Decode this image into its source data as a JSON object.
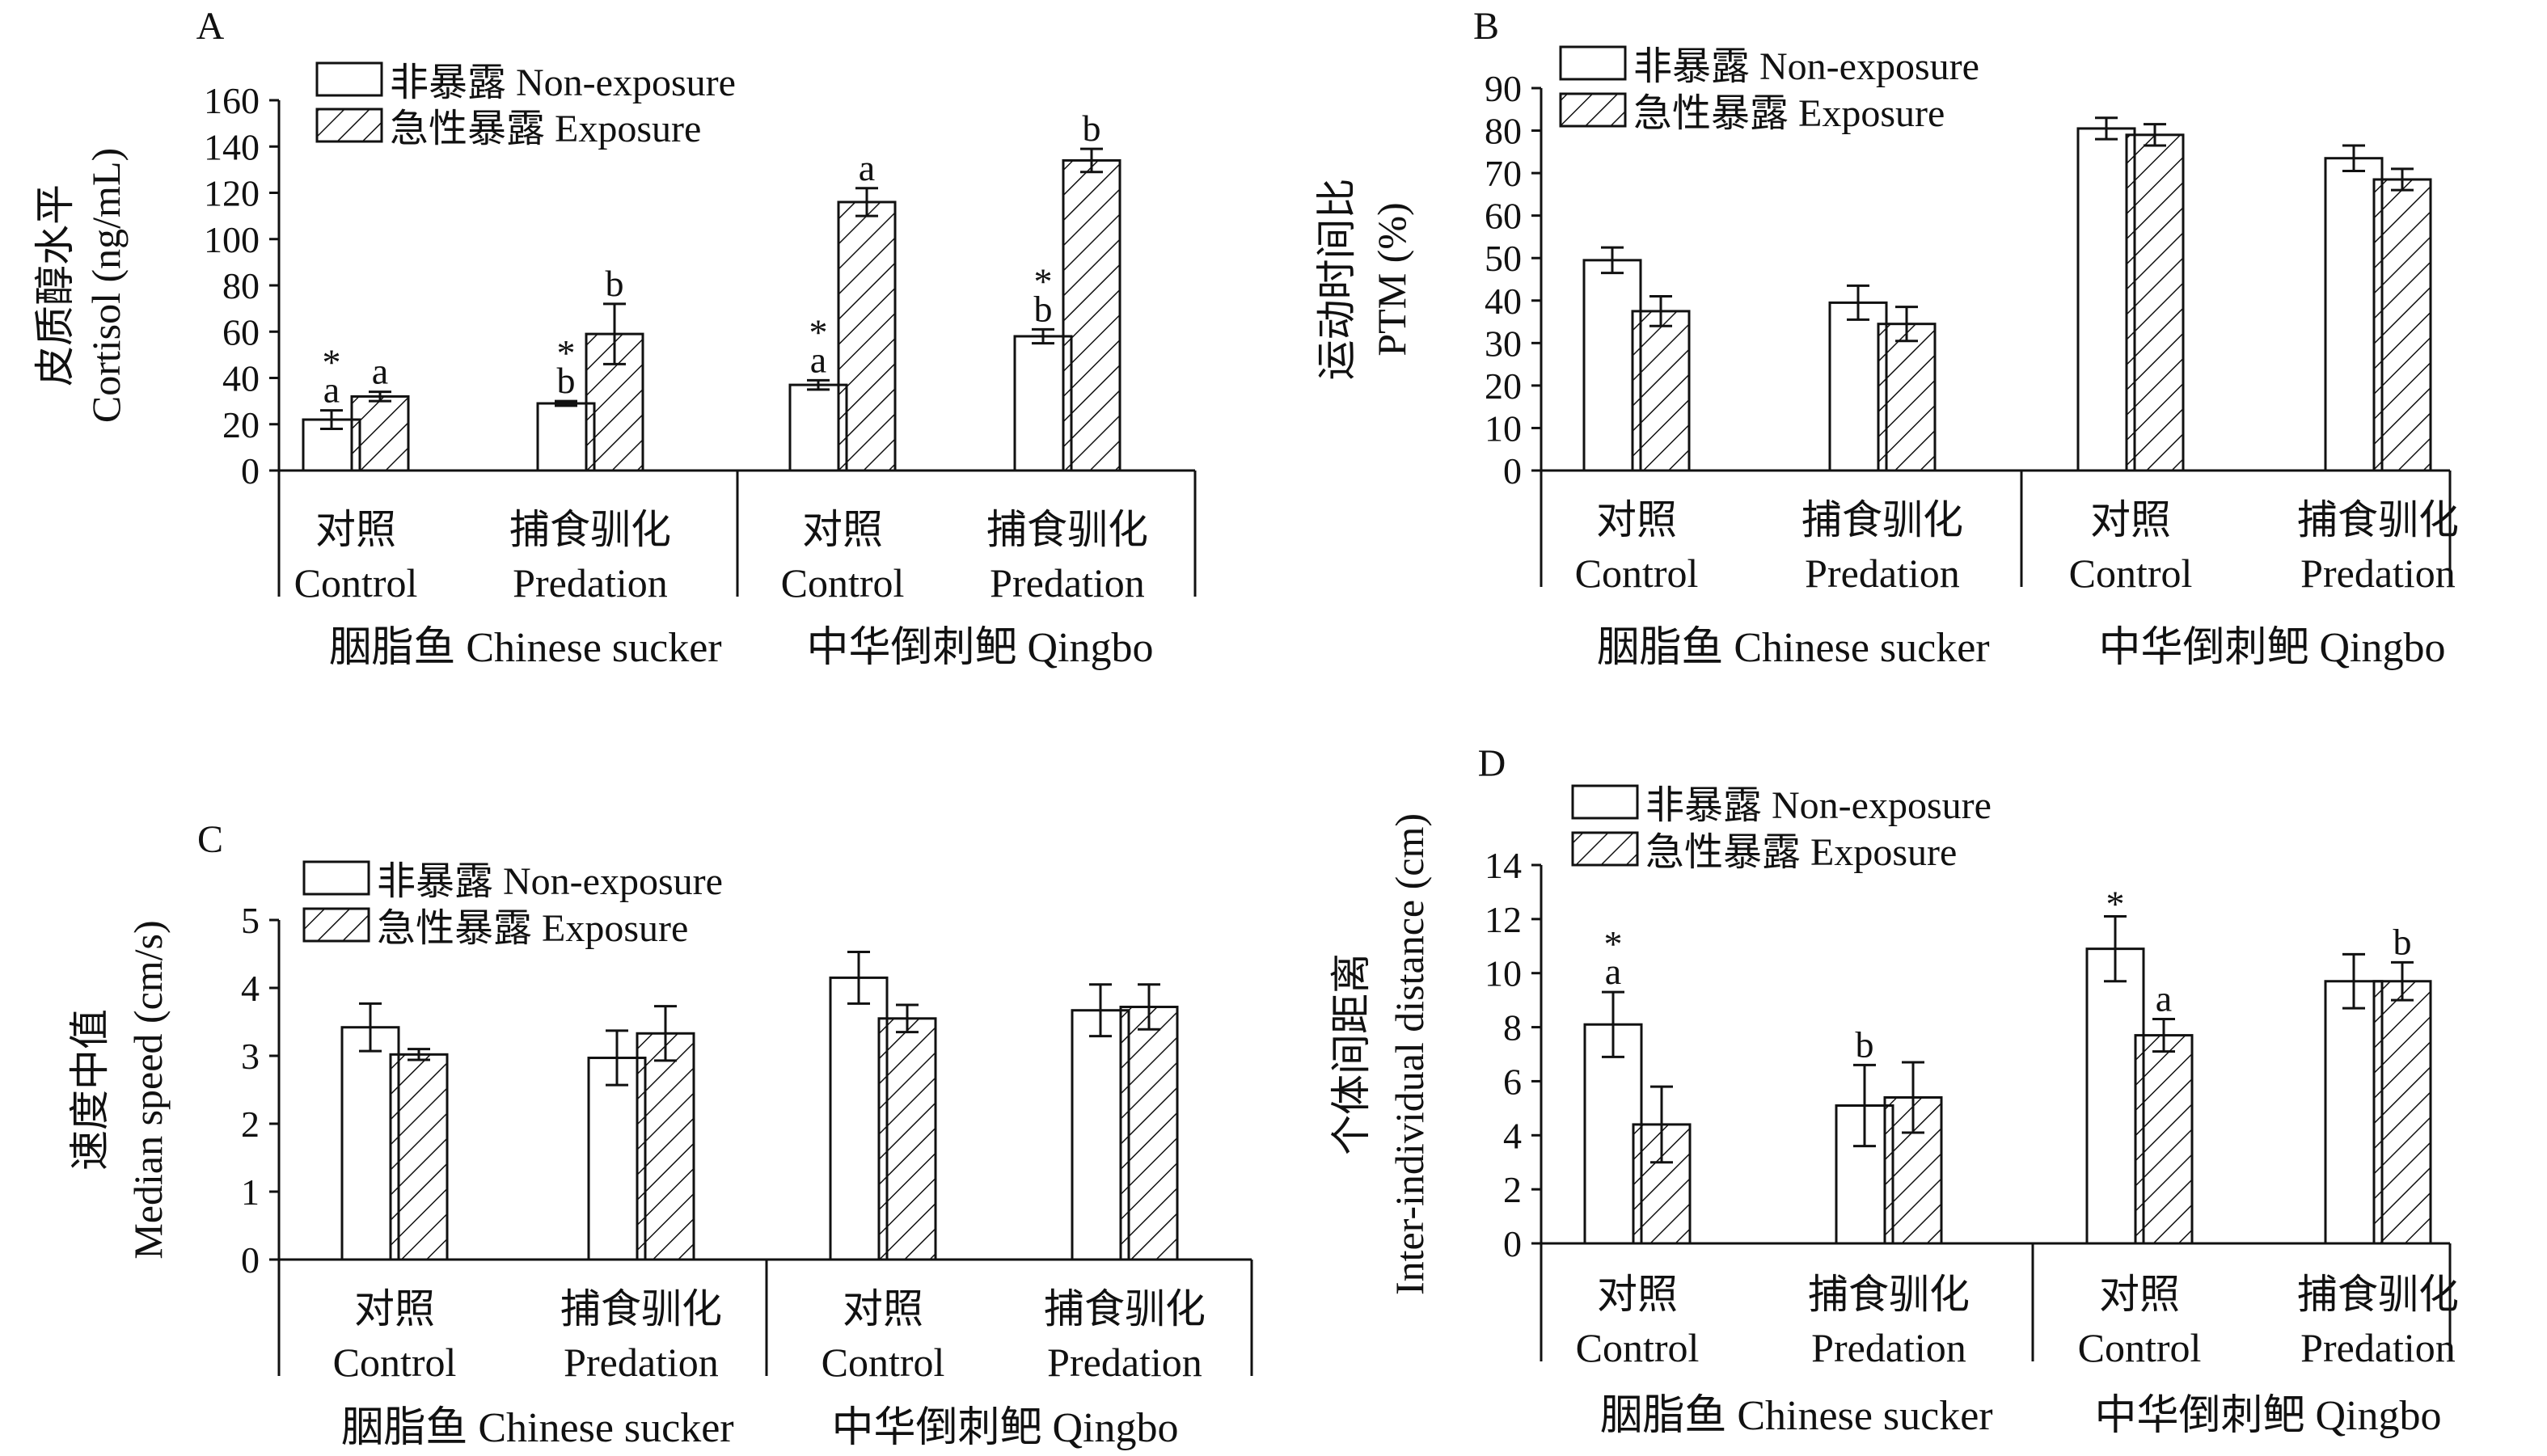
{
  "legend": {
    "non_exposure": "非暴露 Non-exposure",
    "exposure": "急性暴露 Exposure"
  },
  "groups": {
    "control_cn": "对照",
    "control_en": "Control",
    "predation_cn": "捕食驯化",
    "predation_en": "Predation",
    "species1": "胭脂鱼 Chinese sucker",
    "species2": "中华倒刺鲃 Qingbo"
  },
  "chart_data": [
    {
      "type": "bar",
      "panel": "A",
      "ylabel_cn": "皮质醇水平",
      "ylabel_en": "Cortisol (ng/mL)",
      "ylim": [
        0,
        160
      ],
      "yticks": [
        0,
        20,
        40,
        60,
        80,
        100,
        120,
        140,
        160
      ],
      "categories": [
        "胭脂鱼 对照 Control",
        "胭脂鱼 捕食驯化 Predation",
        "中华倒刺鲃 对照 Control",
        "中华倒刺鲃 捕食驯化 Predation"
      ],
      "series": [
        {
          "name": "非暴露 Non-exposure",
          "values": [
            22,
            29,
            37,
            58
          ],
          "errors": [
            4,
            1,
            2,
            3
          ],
          "labels": [
            "*\na",
            "*\nb",
            "*\na",
            "*\nb"
          ]
        },
        {
          "name": "急性暴露 Exposure",
          "values": [
            32,
            59,
            116,
            134
          ],
          "errors": [
            2,
            13,
            6,
            5
          ],
          "labels": [
            "a",
            "b",
            "a",
            "b"
          ]
        }
      ]
    },
    {
      "type": "bar",
      "panel": "B",
      "ylabel_cn": "运动时间比",
      "ylabel_en": "PTM (%)",
      "ylim": [
        0,
        90
      ],
      "yticks": [
        0,
        10,
        20,
        30,
        40,
        50,
        60,
        70,
        80,
        90
      ],
      "categories": [
        "胭脂鱼 对照 Control",
        "胭脂鱼 捕食驯化 Predation",
        "中华倒刺鲃 对照 Control",
        "中华倒刺鲃 捕食驯化 Predation"
      ],
      "series": [
        {
          "name": "非暴露 Non-exposure",
          "values": [
            49.5,
            39.5,
            80.5,
            73.5
          ],
          "errors": [
            3,
            4,
            2.5,
            3
          ],
          "labels": [
            "",
            "",
            "",
            ""
          ]
        },
        {
          "name": "急性暴露 Exposure",
          "values": [
            37.5,
            34.5,
            79,
            68.5
          ],
          "errors": [
            3.5,
            4,
            2.5,
            2.5
          ],
          "labels": [
            "",
            "",
            "",
            ""
          ]
        }
      ]
    },
    {
      "type": "bar",
      "panel": "C",
      "ylabel_cn": "速度中值",
      "ylabel_en": "Median speed (cm/s)",
      "ylim": [
        0,
        5
      ],
      "yticks": [
        0,
        1,
        2,
        3,
        4,
        5
      ],
      "categories": [
        "胭脂鱼 对照 Control",
        "胭脂鱼 捕食驯化 Predation",
        "中华倒刺鲃 对照 Control",
        "中华倒刺鲃 捕食驯化 Predation"
      ],
      "series": [
        {
          "name": "非暴露 Non-exposure",
          "values": [
            3.42,
            2.97,
            4.15,
            3.67
          ],
          "errors": [
            0.35,
            0.4,
            0.38,
            0.38
          ],
          "labels": [
            "",
            "",
            "",
            ""
          ]
        },
        {
          "name": "急性暴露 Exposure",
          "values": [
            3.02,
            3.33,
            3.55,
            3.72
          ],
          "errors": [
            0.08,
            0.4,
            0.2,
            0.33
          ],
          "labels": [
            "",
            "",
            "",
            ""
          ]
        }
      ]
    },
    {
      "type": "bar",
      "panel": "D",
      "ylabel_cn": "个体间距离",
      "ylabel_en": "Inter-individual distance (cm)",
      "ylim": [
        0,
        14
      ],
      "yticks": [
        0,
        2,
        4,
        6,
        8,
        10,
        12,
        14
      ],
      "categories": [
        "胭脂鱼 对照 Control",
        "胭脂鱼 捕食驯化 Predation",
        "中华倒刺鲃 对照 Control",
        "中华倒刺鲃 捕食驯化 Predation"
      ],
      "series": [
        {
          "name": "非暴露 Non-exposure",
          "values": [
            8.1,
            5.1,
            10.9,
            9.7
          ],
          "errors": [
            1.2,
            1.5,
            1.2,
            1.0
          ],
          "labels": [
            "*\na",
            "b",
            "*",
            ""
          ]
        },
        {
          "name": "急性暴露 Exposure",
          "values": [
            4.4,
            5.4,
            7.7,
            9.7
          ],
          "errors": [
            1.4,
            1.3,
            0.6,
            0.7
          ],
          "labels": [
            "",
            "",
            "a",
            "b"
          ]
        }
      ]
    }
  ]
}
